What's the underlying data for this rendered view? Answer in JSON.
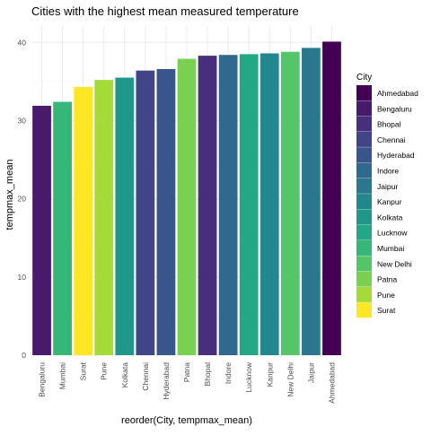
{
  "chart_data": {
    "type": "bar",
    "title": "Cities with the highest mean measured temperature",
    "xlabel": "reorder(City, tempmax_mean)",
    "ylabel": "tempmax_mean",
    "ylim": [
      0,
      40
    ],
    "yticks": [
      0,
      10,
      20,
      30,
      40
    ],
    "grid": true,
    "legend_title": "City",
    "legend_position": "right",
    "categories": [
      "Bengaluru",
      "Mumbai",
      "Surat",
      "Pune",
      "Kolkata",
      "Chennai",
      "Hyderabad",
      "Patna",
      "Bhopal",
      "Indore",
      "Lucknow",
      "Kanpur",
      "New Delhi",
      "Jaipur",
      "Ahmedabad"
    ],
    "values": [
      31.9,
      32.4,
      34.3,
      35.2,
      35.5,
      36.4,
      36.6,
      37.9,
      38.3,
      38.4,
      38.5,
      38.6,
      38.8,
      39.3,
      40.1
    ],
    "colors": {
      "Ahmedabad": "#440154",
      "Bengaluru": "#481a6c",
      "Bhopal": "#472f7d",
      "Chennai": "#414487",
      "Hyderabad": "#39568c",
      "Indore": "#31688e",
      "Jaipur": "#2a788e",
      "Kanpur": "#23888e",
      "Kolkata": "#1f988b",
      "Lucknow": "#22a884",
      "Mumbai": "#35b779",
      "New Delhi": "#54c568",
      "Patna": "#7ad151",
      "Pune": "#a5db36",
      "Surat": "#fde725"
    },
    "legend_entries": [
      "Ahmedabad",
      "Bengaluru",
      "Bhopal",
      "Chennai",
      "Hyderabad",
      "Indore",
      "Jaipur",
      "Kanpur",
      "Kolkata",
      "Lucknow",
      "Mumbai",
      "New Delhi",
      "Patna",
      "Pune",
      "Surat"
    ]
  }
}
